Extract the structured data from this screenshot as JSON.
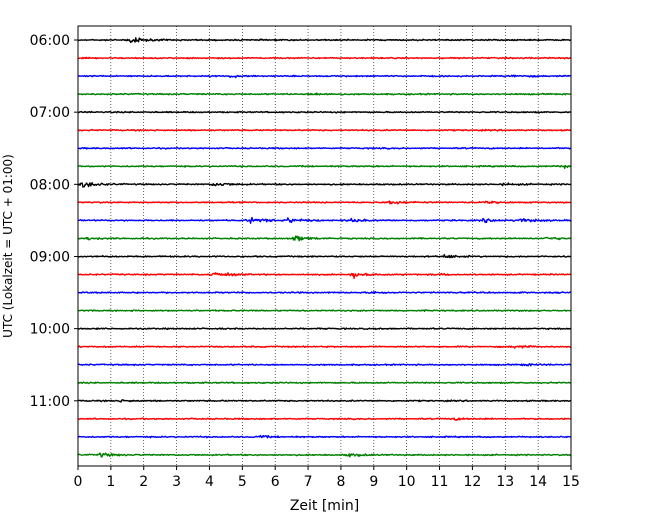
{
  "chart_data": {
    "type": "line",
    "title": "",
    "xlabel": "Zeit  [min]",
    "ylabel": "UTC (Lokalzeit = UTC + 01:00)",
    "xlim": [
      0,
      15
    ],
    "x_ticks": [
      "0",
      "1",
      "2",
      "3",
      "4",
      "5",
      "6",
      "7",
      "8",
      "9",
      "10",
      "11",
      "12",
      "13",
      "14",
      "15"
    ],
    "y_ticks": [
      "06:00",
      "07:00",
      "08:00",
      "09:00",
      "10:00",
      "11:00"
    ],
    "grid": "vertical-dotted",
    "legend": "none",
    "trace_colors": [
      "#000000",
      "#ff0000",
      "#0000ff",
      "#008000"
    ],
    "traces": [
      {
        "start": "06:00",
        "events": [
          [
            1.6,
            4
          ]
        ]
      },
      {
        "start": "06:15",
        "events": []
      },
      {
        "start": "06:30",
        "events": [
          [
            4.7,
            1.5
          ],
          [
            13.2,
            1.5
          ]
        ]
      },
      {
        "start": "06:45",
        "events": [
          [
            7.2,
            1.5
          ]
        ]
      },
      {
        "start": "07:00",
        "events": []
      },
      {
        "start": "07:15",
        "events": []
      },
      {
        "start": "07:30",
        "events": []
      },
      {
        "start": "07:45",
        "events": [
          [
            14.8,
            2
          ]
        ]
      },
      {
        "start": "08:00",
        "events": [
          [
            0.2,
            4
          ],
          [
            4.2,
            2.5
          ],
          [
            13.0,
            1
          ]
        ]
      },
      {
        "start": "08:15",
        "events": [
          [
            9.5,
            2.5
          ],
          [
            12.5,
            1
          ]
        ]
      },
      {
        "start": "08:30",
        "events": [
          [
            5.3,
            3.5
          ],
          [
            6.4,
            3
          ],
          [
            8.3,
            2
          ],
          [
            12.4,
            2
          ],
          [
            13.5,
            2.5
          ]
        ]
      },
      {
        "start": "08:45",
        "events": [
          [
            0.3,
            1.5
          ],
          [
            6.6,
            3.5
          ],
          [
            14.3,
            1.5
          ]
        ]
      },
      {
        "start": "09:00",
        "events": [
          [
            11.2,
            2
          ]
        ]
      },
      {
        "start": "09:15",
        "events": [
          [
            4.2,
            3.5
          ],
          [
            8.4,
            3.5
          ],
          [
            11.0,
            1
          ]
        ]
      },
      {
        "start": "09:30",
        "events": [
          [
            9.0,
            1.2
          ]
        ]
      },
      {
        "start": "09:45",
        "events": []
      },
      {
        "start": "10:00",
        "events": []
      },
      {
        "start": "10:15",
        "events": [
          [
            13.3,
            1.5
          ]
        ]
      },
      {
        "start": "10:30",
        "events": [
          [
            13.6,
            1.2
          ]
        ]
      },
      {
        "start": "10:45",
        "events": []
      },
      {
        "start": "11:00",
        "events": [
          [
            1.3,
            1.2
          ]
        ]
      },
      {
        "start": "11:15",
        "events": [
          [
            11.5,
            1.2
          ]
        ]
      },
      {
        "start": "11:30",
        "events": [
          [
            5.5,
            1.5
          ]
        ]
      },
      {
        "start": "11:45",
        "events": [
          [
            0.7,
            2.5
          ],
          [
            8.3,
            2
          ]
        ]
      }
    ]
  }
}
